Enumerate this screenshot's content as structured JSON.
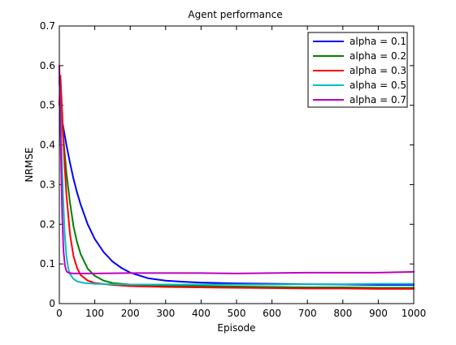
{
  "chart_data": {
    "type": "line",
    "title": "Agent performance",
    "xlabel": "Episode",
    "ylabel": "NRMSE",
    "xlim": [
      0,
      1000
    ],
    "ylim": [
      0,
      0.7
    ],
    "xticks": [
      0,
      100,
      200,
      300,
      400,
      500,
      600,
      700,
      800,
      900,
      1000
    ],
    "yticks": [
      0,
      0.1,
      0.2,
      0.3,
      0.4,
      0.5,
      0.6,
      0.7
    ],
    "grid": false,
    "legend_position": "top-right",
    "series": [
      {
        "name": "alpha = 0.1",
        "color": "#0000ff",
        "x": [
          0,
          5,
          10,
          20,
          30,
          40,
          50,
          60,
          80,
          100,
          125,
          150,
          175,
          200,
          250,
          300,
          350,
          400,
          450,
          500,
          600,
          700,
          800,
          900,
          1000
        ],
        "y": [
          0.51,
          0.48,
          0.45,
          0.4,
          0.355,
          0.315,
          0.28,
          0.25,
          0.2,
          0.163,
          0.13,
          0.106,
          0.09,
          0.078,
          0.064,
          0.058,
          0.055,
          0.053,
          0.052,
          0.051,
          0.05,
          0.049,
          0.048,
          0.047,
          0.047
        ]
      },
      {
        "name": "alpha = 0.2",
        "color": "#008000",
        "x": [
          0,
          5,
          10,
          20,
          30,
          40,
          50,
          60,
          80,
          100,
          125,
          150,
          200,
          250,
          300,
          400,
          500,
          600,
          700,
          800,
          900,
          1000
        ],
        "y": [
          0.56,
          0.5,
          0.43,
          0.33,
          0.255,
          0.195,
          0.155,
          0.125,
          0.088,
          0.07,
          0.058,
          0.052,
          0.048,
          0.046,
          0.045,
          0.044,
          0.043,
          0.042,
          0.041,
          0.041,
          0.04,
          0.04
        ]
      },
      {
        "name": "alpha = 0.3",
        "color": "#ff0000",
        "x": [
          0,
          3,
          6,
          10,
          15,
          20,
          30,
          40,
          50,
          60,
          80,
          100,
          150,
          200,
          300,
          400,
          500,
          600,
          700,
          800,
          900,
          1000
        ],
        "y": [
          0.5,
          0.575,
          0.52,
          0.44,
          0.35,
          0.275,
          0.175,
          0.12,
          0.09,
          0.072,
          0.058,
          0.052,
          0.047,
          0.044,
          0.042,
          0.041,
          0.04,
          0.039,
          0.038,
          0.038,
          0.037,
          0.037
        ]
      },
      {
        "name": "alpha = 0.5",
        "color": "#00bfbf",
        "x": [
          0,
          3,
          6,
          10,
          15,
          20,
          25,
          30,
          40,
          50,
          70,
          100,
          150,
          200,
          300,
          400,
          500,
          600,
          700,
          800,
          900,
          1000
        ],
        "y": [
          0.57,
          0.5,
          0.4,
          0.28,
          0.18,
          0.12,
          0.09,
          0.075,
          0.062,
          0.056,
          0.052,
          0.05,
          0.049,
          0.048,
          0.048,
          0.048,
          0.048,
          0.048,
          0.049,
          0.049,
          0.05,
          0.05
        ]
      },
      {
        "name": "alpha = 0.7",
        "color": "#bf00bf",
        "x": [
          0,
          2,
          5,
          8,
          12,
          16,
          20,
          25,
          30,
          40,
          60,
          100,
          200,
          300,
          400,
          500,
          600,
          700,
          800,
          900,
          950,
          1000
        ],
        "y": [
          0.6,
          0.5,
          0.35,
          0.22,
          0.13,
          0.095,
          0.082,
          0.078,
          0.077,
          0.076,
          0.076,
          0.076,
          0.077,
          0.077,
          0.077,
          0.076,
          0.077,
          0.078,
          0.078,
          0.078,
          0.079,
          0.08
        ]
      }
    ]
  }
}
